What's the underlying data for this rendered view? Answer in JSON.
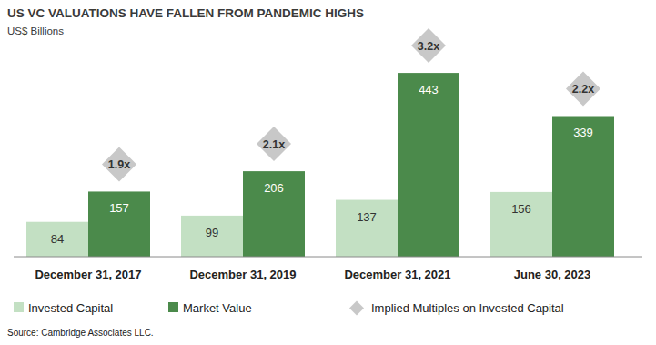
{
  "chart_data": {
    "type": "bar",
    "title": "US VC VALUATIONS HAVE FALLEN FROM PANDEMIC HIGHS",
    "subtitle": "US$ Billions",
    "source": "Source: Cambridge Associates LLC.",
    "categories": [
      "December 31, 2017",
      "December 31, 2019",
      "December 31, 2021",
      "June 30, 2023"
    ],
    "series": [
      {
        "name": "Invested Capital",
        "color": "#c3e0c3",
        "values": [
          84,
          99,
          137,
          156
        ]
      },
      {
        "name": "Market Value",
        "color": "#4b8a4b",
        "values": [
          157,
          206,
          443,
          339
        ]
      },
      {
        "name": "Implied Multiples on Invested Capital",
        "type": "scatter",
        "marker": "diamond",
        "color": "#c8c8c8",
        "values": [
          1.9,
          2.1,
          3.2,
          2.2
        ],
        "value_labels": [
          "1.9x",
          "2.1x",
          "3.2x",
          "2.2x"
        ]
      }
    ],
    "ylim": [
      0,
      520
    ],
    "tick_labels": "x",
    "data_labels": true,
    "legend": "bottom"
  }
}
